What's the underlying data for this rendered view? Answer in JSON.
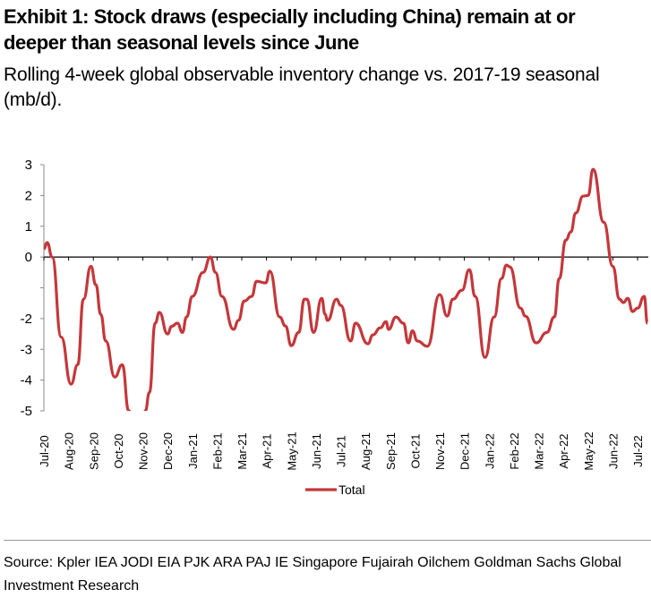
{
  "title_line1": "Exhibit 1: Stock draws (especially including China) remain at or",
  "title_line2": "deeper than seasonal levels since June",
  "subtitle_line1": "Rolling 4-week global observable inventory change vs. 2017-19 seasonal",
  "subtitle_line2": "(mb/d).",
  "source_line1": "Source: Kpler IEA JODI EIA PJK ARA PAJ IE Singapore Fujairah Oilchem Goldman Sachs Global",
  "source_line2": "Investment Research",
  "chart_data": {
    "type": "line",
    "title": "Exhibit 1: Stock draws (especially including China) remain at or deeper than seasonal levels since June",
    "xlabel": "",
    "ylabel": "",
    "ylim": [
      -5,
      3
    ],
    "y_ticks": [
      3,
      2,
      1,
      0,
      -1,
      -2,
      -3,
      -4,
      -5
    ],
    "y_tick_labels": [
      "3",
      "2",
      "1",
      "0",
      "",
      "-2",
      "-3",
      "-4",
      "-5"
    ],
    "x_tick_labels": [
      "Jul-20",
      "Aug-20",
      "Sep-20",
      "Oct-20",
      "Nov-20",
      "Dec-20",
      "Jan-21",
      "Feb-21",
      "Mar-21",
      "Apr-21",
      "May-21",
      "Jun-21",
      "Jul-21",
      "Aug-21",
      "Sep-21",
      "Oct-21",
      "Nov-21",
      "Dec-21",
      "Jan-22",
      "Feb-22",
      "Mar-22",
      "Apr-22",
      "May-22",
      "Jun-22",
      "Jul-22"
    ],
    "grid": false,
    "legend_placement": "bottom",
    "colors": {
      "Total": "#c4373a"
    },
    "series": [
      {
        "name": "Total",
        "points": [
          [
            "2020-07-01",
            0.27
          ],
          [
            "2020-07-05",
            0.47
          ],
          [
            "2020-07-11",
            0.0
          ],
          [
            "2020-07-22",
            -2.6
          ],
          [
            "2020-08-04",
            -4.13
          ],
          [
            "2020-08-12",
            -3.5
          ],
          [
            "2020-08-19",
            -1.37
          ],
          [
            "2020-08-28",
            -0.3
          ],
          [
            "2020-09-04",
            -0.9
          ],
          [
            "2020-09-10",
            -1.86
          ],
          [
            "2020-09-16",
            -2.73
          ],
          [
            "2020-09-27",
            -3.9
          ],
          [
            "2020-10-06",
            -3.5
          ],
          [
            "2020-10-14",
            -5.0
          ],
          [
            "2020-10-24",
            -5.6
          ],
          [
            "2020-11-01",
            -5.4
          ],
          [
            "2020-11-04",
            -5.0
          ],
          [
            "2020-11-09",
            -4.4
          ],
          [
            "2020-11-16",
            -2.15
          ],
          [
            "2020-11-21",
            -1.8
          ],
          [
            "2020-12-01",
            -2.5
          ],
          [
            "2020-12-06",
            -2.25
          ],
          [
            "2020-12-13",
            -2.15
          ],
          [
            "2020-12-19",
            -2.45
          ],
          [
            "2020-12-24",
            -1.95
          ],
          [
            "2021-01-01",
            -1.28
          ],
          [
            "2021-01-14",
            -0.5
          ],
          [
            "2021-01-23",
            0.0
          ],
          [
            "2021-01-29",
            -0.5
          ],
          [
            "2021-02-07",
            -1.28
          ],
          [
            "2021-02-21",
            -2.35
          ],
          [
            "2021-02-27",
            -2.06
          ],
          [
            "2021-03-04",
            -1.43
          ],
          [
            "2021-03-13",
            -1.28
          ],
          [
            "2021-03-19",
            -0.79
          ],
          [
            "2021-03-30",
            -0.84
          ],
          [
            "2021-04-05",
            -0.46
          ],
          [
            "2021-04-17",
            -1.95
          ],
          [
            "2021-04-24",
            -2.24
          ],
          [
            "2021-05-01",
            -2.88
          ],
          [
            "2021-05-10",
            -2.45
          ],
          [
            "2021-05-17",
            -1.37
          ],
          [
            "2021-05-20",
            -1.37
          ],
          [
            "2021-05-28",
            -2.45
          ],
          [
            "2021-06-08",
            -1.34
          ],
          [
            "2021-06-12",
            -1.86
          ],
          [
            "2021-06-15",
            -2.06
          ],
          [
            "2021-06-26",
            -1.37
          ],
          [
            "2021-07-01",
            -1.57
          ],
          [
            "2021-07-13",
            -2.73
          ],
          [
            "2021-07-19",
            -2.15
          ],
          [
            "2021-08-04",
            -2.82
          ],
          [
            "2021-08-10",
            -2.53
          ],
          [
            "2021-08-19",
            -2.3
          ],
          [
            "2021-08-26",
            -2.1
          ],
          [
            "2021-08-29",
            -2.35
          ],
          [
            "2021-09-08",
            -1.95
          ],
          [
            "2021-09-17",
            -2.15
          ],
          [
            "2021-09-23",
            -2.79
          ],
          [
            "2021-09-28",
            -2.4
          ],
          [
            "2021-10-04",
            -2.73
          ],
          [
            "2021-10-16",
            -2.9
          ],
          [
            "2021-11-01",
            -1.22
          ],
          [
            "2021-11-10",
            -1.92
          ],
          [
            "2021-11-17",
            -1.37
          ],
          [
            "2021-11-28",
            -1.08
          ],
          [
            "2021-12-07",
            -0.41
          ],
          [
            "2021-12-14",
            -1.28
          ],
          [
            "2021-12-26",
            -3.26
          ],
          [
            "2022-01-07",
            -1.95
          ],
          [
            "2022-01-16",
            -0.7
          ],
          [
            "2022-01-22",
            -0.26
          ],
          [
            "2022-01-26",
            -0.32
          ],
          [
            "2022-02-09",
            -1.66
          ],
          [
            "2022-02-15",
            -1.92
          ],
          [
            "2022-02-28",
            -2.79
          ],
          [
            "2022-03-11",
            -2.45
          ],
          [
            "2022-03-20",
            -1.95
          ],
          [
            "2022-03-26",
            -0.7
          ],
          [
            "2022-04-04",
            0.55
          ],
          [
            "2022-04-10",
            0.81
          ],
          [
            "2022-04-16",
            1.43
          ],
          [
            "2022-04-25",
            1.98
          ],
          [
            "2022-05-01",
            2.0
          ],
          [
            "2022-05-07",
            2.85
          ],
          [
            "2022-05-20",
            1.13
          ],
          [
            "2022-06-01",
            -0.3
          ],
          [
            "2022-06-09",
            -1.37
          ],
          [
            "2022-06-14",
            -1.48
          ],
          [
            "2022-06-19",
            -1.34
          ],
          [
            "2022-06-25",
            -1.77
          ],
          [
            "2022-07-01",
            -1.66
          ],
          [
            "2022-07-09",
            -1.28
          ],
          [
            "2022-07-13",
            -2.15
          ]
        ]
      }
    ]
  }
}
